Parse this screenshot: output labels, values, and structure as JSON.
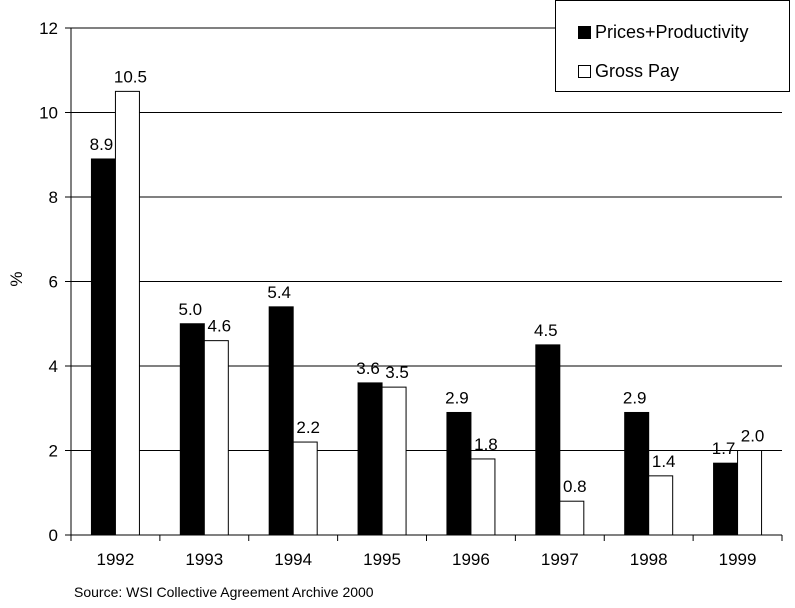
{
  "chart_data": {
    "type": "bar",
    "categories": [
      "1992",
      "1993",
      "1994",
      "1995",
      "1996",
      "1997",
      "1998",
      "1999"
    ],
    "series": [
      {
        "name": "Prices+Productivity",
        "values": [
          8.9,
          5.0,
          5.4,
          3.6,
          2.9,
          4.5,
          2.9,
          1.7
        ],
        "labels": [
          "8.9",
          "5.0",
          "5.4",
          "3.6",
          "2.9",
          "4.5",
          "2.9",
          "1.7"
        ],
        "color": "#000000"
      },
      {
        "name": "Gross Pay",
        "values": [
          10.5,
          4.6,
          2.2,
          3.5,
          1.8,
          0.8,
          1.4,
          2.0
        ],
        "labels": [
          "10.5",
          "4.6",
          "2.2",
          "3.5",
          "1.8",
          "0.8",
          "1.4",
          "2.0"
        ],
        "color": "#ffffff"
      }
    ],
    "ylabel": "%",
    "ylim": [
      0,
      12
    ],
    "yticks": [
      "0",
      "2",
      "4",
      "6",
      "8",
      "10",
      "12"
    ],
    "grid": true,
    "legend": "top-right"
  },
  "source": "Source: WSI Collective Agreement Archive 2000"
}
